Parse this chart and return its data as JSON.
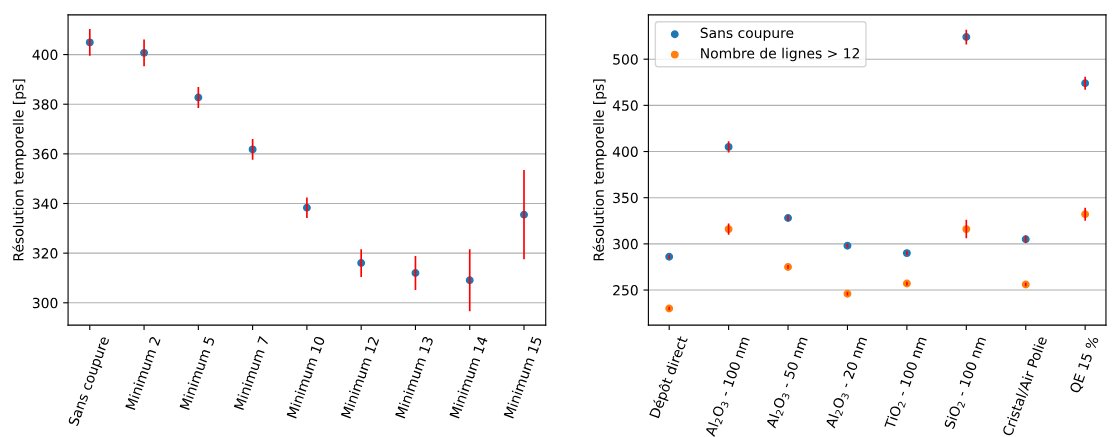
{
  "chart_data": [
    {
      "type": "scatter",
      "ylabel": "Résolution temporelle [ps]",
      "categories": [
        "Sans coupure",
        "Minimum 2",
        "Minimum 5",
        "Minimum 7",
        "Minimum 10",
        "Minimum 12",
        "Minimum 13",
        "Minimum 14",
        "Minimum 15"
      ],
      "series": [
        {
          "color": "#1f77b4",
          "values": [
            404.9,
            400.7,
            382.7,
            361.8,
            338.3,
            316.0,
            312.0,
            309.1,
            335.5
          ],
          "errors": [
            5.4,
            5.4,
            4.2,
            4.2,
            4.1,
            5.6,
            6.8,
            12.5,
            18.0
          ]
        }
      ],
      "ylim": [
        291,
        416
      ],
      "yticks": [
        300,
        320,
        340,
        360,
        380,
        400
      ],
      "grid": "y",
      "legend": false,
      "marker": "circle"
    },
    {
      "type": "scatter",
      "ylabel": "Résolution temporelle [ps]",
      "categories": [
        "Dépôt direct",
        "Al$_{2}$O$_{3}$ - 100 nm",
        "Al$_{2}$O$_{3}$ - 50 nm",
        "Al$_{2}$O$_{3}$ - 20 nm",
        "TiO$_{2}$ - 100 nm",
        "SiO$_{2}$ - 100 nm",
        "Cristal/Air Polie",
        "QE 15 %"
      ],
      "series": [
        {
          "name": "Sans coupure",
          "color": "#1f77b4",
          "values": [
            286,
            405,
            328,
            298,
            290,
            524,
            305,
            474
          ],
          "errors": [
            2,
            6,
            3,
            2,
            2,
            8,
            4,
            7
          ]
        },
        {
          "name": "Nombre de lignes > 12",
          "color": "#ff7f0e",
          "values": [
            230,
            316,
            275,
            246,
            257,
            316,
            256,
            332
          ],
          "errors": [
            2,
            6,
            2,
            2,
            2,
            10,
            2,
            7
          ]
        }
      ],
      "ylim": [
        212,
        548
      ],
      "yticks": [
        250,
        300,
        350,
        400,
        450,
        500
      ],
      "grid": "y",
      "legend": "top left",
      "marker": "circle"
    }
  ]
}
